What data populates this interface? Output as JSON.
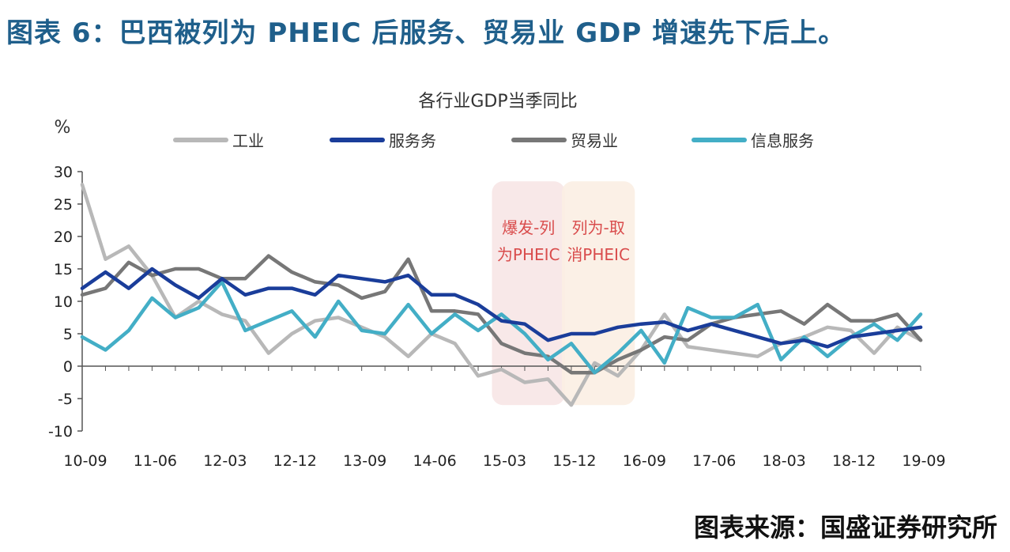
{
  "header": {
    "figure_title": "图表 6：巴西被列为 PHEIC 后服务、贸易业 GDP 增速先下后上。"
  },
  "footer": {
    "source": "图表来源：国盛证券研究所"
  },
  "chart_data": {
    "type": "line",
    "title": "各行业GDP当季同比",
    "ylabel": "%",
    "xlabel": "",
    "ylim": [
      -10,
      30
    ],
    "yticks": [
      30,
      25,
      20,
      15,
      10,
      5,
      0,
      -5,
      -10
    ],
    "x_tick_labels": [
      "10-09",
      "11-06",
      "12-03",
      "12-12",
      "13-09",
      "14-06",
      "15-03",
      "15-12",
      "16-09",
      "17-06",
      "18-03",
      "18-12",
      "19-09"
    ],
    "x": [
      "10-09",
      "10-12",
      "11-03",
      "11-06",
      "11-09",
      "11-12",
      "12-03",
      "12-06",
      "12-09",
      "12-12",
      "13-03",
      "13-06",
      "13-09",
      "13-12",
      "14-03",
      "14-06",
      "14-09",
      "14-12",
      "15-03",
      "15-06",
      "15-09",
      "15-12",
      "16-03",
      "16-06",
      "16-09",
      "16-12",
      "17-03",
      "17-06",
      "17-09",
      "17-12",
      "18-03",
      "18-06",
      "18-09",
      "18-12",
      "19-03",
      "19-06",
      "19-09"
    ],
    "grid": false,
    "legend_position": "top",
    "series": [
      {
        "name": "工业",
        "color": "#b8b8b8",
        "values": [
          28,
          16.5,
          18.5,
          14,
          7.5,
          10,
          8,
          7,
          2,
          5,
          7,
          7.5,
          6,
          4.5,
          1.5,
          5,
          3.5,
          -1.5,
          -0.5,
          -2.5,
          -2,
          -6,
          0.5,
          -1.5,
          2.5,
          8,
          3,
          2.5,
          2,
          1.5,
          3.5,
          4.5,
          6,
          5.5,
          2,
          6,
          4
        ]
      },
      {
        "name": "服务务",
        "color": "#1a3d9a",
        "values": [
          12,
          14.5,
          12,
          15,
          12.5,
          10.5,
          13.5,
          11,
          12,
          12,
          11,
          14,
          13.5,
          13,
          14,
          11,
          11,
          9.5,
          7,
          6.5,
          4,
          5,
          5,
          6,
          6.5,
          6.8,
          5.5,
          6.5,
          5.5,
          4.5,
          3.5,
          4,
          3,
          4.5,
          5,
          5.5,
          6
        ]
      },
      {
        "name": "贸易业",
        "color": "#777777",
        "values": [
          11,
          12,
          16,
          14,
          15,
          15,
          13.5,
          13.5,
          17,
          14.5,
          13,
          12.5,
          10.5,
          11.5,
          16.5,
          8.5,
          8.5,
          8,
          3.5,
          2,
          1.5,
          -1,
          -1,
          1,
          2.5,
          4.5,
          4,
          6.5,
          7.5,
          8,
          8.5,
          6.5,
          9.5,
          7,
          7,
          8,
          4
        ]
      },
      {
        "name": "信息服务",
        "color": "#43aec6",
        "values": [
          4.5,
          2.5,
          5.5,
          10.5,
          7.5,
          9,
          13,
          5.5,
          7,
          8.5,
          4.5,
          10,
          5.5,
          5,
          9.5,
          5,
          8,
          5.5,
          8,
          5,
          1,
          3.5,
          -1,
          2,
          5.5,
          0.5,
          9,
          7.5,
          7.5,
          9.5,
          1,
          4.5,
          1.5,
          4.5,
          6.5,
          4,
          8
        ]
      }
    ],
    "annotations": [
      {
        "text_lines": [
          "爆发-列",
          "为PHEIC"
        ],
        "from": "15-03",
        "to": "15-12",
        "color": "#d94c4c",
        "fill": "#f7e6e6"
      },
      {
        "text_lines": [
          "列为-取",
          "消PHEIC"
        ],
        "from": "15-12",
        "to": "16-09",
        "color": "#d94c4c",
        "fill": "#fbeee3"
      }
    ]
  }
}
